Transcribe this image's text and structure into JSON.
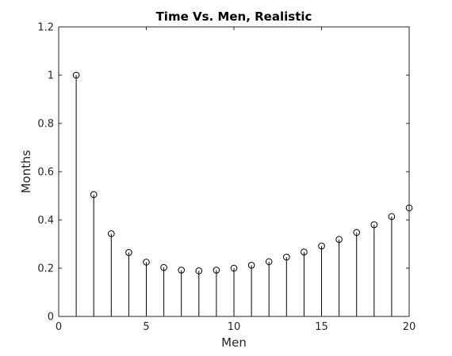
{
  "chart_data": {
    "type": "stem",
    "title": "Time Vs. Men, Realistic",
    "xlabel": "Men",
    "ylabel": "Months",
    "xlim": [
      0,
      20
    ],
    "ylim": [
      0,
      1.2
    ],
    "x_ticks": [
      0,
      5,
      10,
      15,
      20
    ],
    "x_tick_labels": [
      "0",
      "5",
      "10",
      "15",
      "20"
    ],
    "y_ticks": [
      0,
      0.2,
      0.4,
      0.6,
      0.8,
      1.0,
      1.2
    ],
    "y_tick_labels": [
      "0",
      "0.2",
      "0.4",
      "0.6",
      "0.8",
      "1",
      "1.2"
    ],
    "grid": false,
    "marker": "open-circle",
    "series": [
      {
        "x": [
          1,
          2,
          3,
          4,
          5,
          6,
          7,
          8,
          9,
          10,
          11,
          12,
          13,
          14,
          15,
          16,
          17,
          18,
          19,
          20
        ],
        "y": [
          1.0,
          0.505,
          0.343,
          0.265,
          0.225,
          0.203,
          0.192,
          0.189,
          0.192,
          0.2,
          0.212,
          0.227,
          0.246,
          0.267,
          0.292,
          0.319,
          0.348,
          0.38,
          0.414,
          0.45
        ]
      }
    ],
    "colors": {
      "stem": "#000000",
      "axes": "#262626",
      "background": "#ffffff"
    }
  }
}
